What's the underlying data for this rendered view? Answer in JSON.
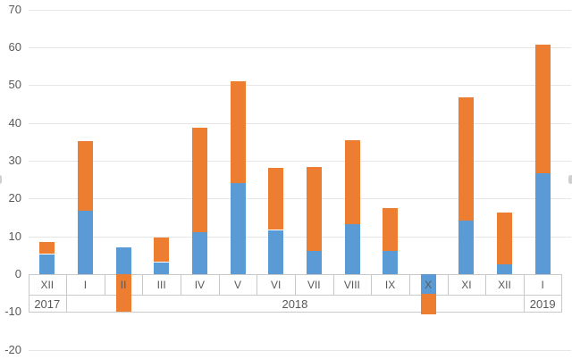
{
  "chart_data": {
    "type": "bar",
    "variant": "stacked-column",
    "title": "",
    "xlabel": "",
    "ylabel": "",
    "categories": [
      "XII",
      "I",
      "II",
      "III",
      "IV",
      "V",
      "VI",
      "VII",
      "VIII",
      "IX",
      "X",
      "XI",
      "XII",
      "I"
    ],
    "year_groups": [
      {
        "label": "2017",
        "span": 1
      },
      {
        "label": "2018",
        "span": 12
      },
      {
        "label": "2019",
        "span": 1
      }
    ],
    "series": [
      {
        "id": "blue",
        "color": "#5B9BD5",
        "values": [
          5.3,
          16.9,
          7.0,
          3.2,
          11.0,
          24.0,
          11.7,
          6.1,
          13.3,
          6.1,
          -5.1,
          14.2,
          2.6,
          26.6
        ]
      },
      {
        "id": "orange",
        "color": "#ED7D31",
        "values": [
          3.1,
          18.3,
          -10.0,
          6.5,
          27.7,
          27.1,
          16.5,
          22.2,
          22.1,
          11.4,
          -5.5,
          32.7,
          13.6,
          34.1
        ]
      }
    ],
    "y_ticks": [
      70,
      60,
      50,
      40,
      30,
      20,
      10,
      0,
      -10,
      -20
    ],
    "ylim": [
      -20,
      70
    ],
    "grid": true,
    "legend": "none"
  },
  "colors": {
    "series_blue": "#5B9BD5",
    "series_orange": "#ED7D31",
    "gridline": "#E6E6E6",
    "band_border": "#C9C9C9",
    "axis_text": "#595959",
    "background": "#FFFFFF"
  }
}
